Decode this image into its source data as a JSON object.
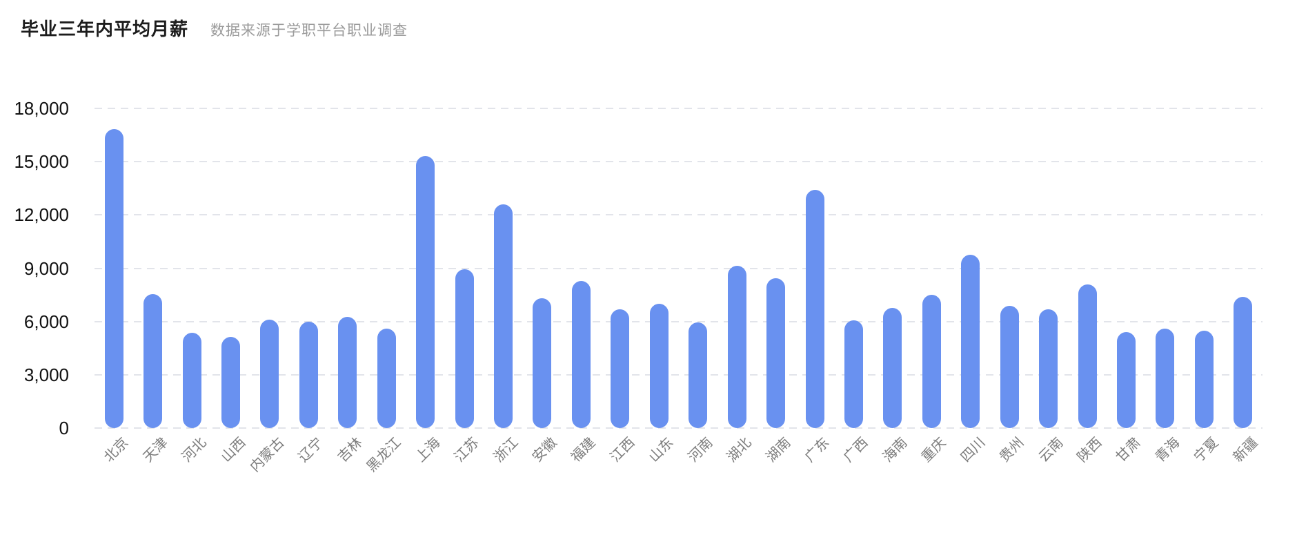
{
  "header": {
    "title": "毕业三年内平均月薪",
    "subtitle": "数据来源于学职平台职业调查"
  },
  "chart_data": {
    "type": "bar",
    "title": "毕业三年内平均月薪",
    "subtitle": "数据来源于学职平台职业调查",
    "categories": [
      "北京",
      "天津",
      "河北",
      "山西",
      "内蒙古",
      "辽宁",
      "吉林",
      "黑龙江",
      "上海",
      "江苏",
      "浙江",
      "安徽",
      "福建",
      "江西",
      "山东",
      "河南",
      "湖北",
      "湖南",
      "广东",
      "广西",
      "海南",
      "重庆",
      "四川",
      "贵州",
      "云南",
      "陕西",
      "甘肃",
      "青海",
      "宁夏",
      "新疆"
    ],
    "values": [
      16850,
      7550,
      5350,
      5150,
      6100,
      6000,
      6250,
      5600,
      15300,
      8950,
      12600,
      7300,
      8300,
      6700,
      7000,
      5950,
      9150,
      8450,
      13400,
      6050,
      6750,
      7500,
      9750,
      6900,
      6700,
      8100,
      5400,
      5600,
      5500,
      7400
    ],
    "xlabel": "",
    "ylabel": "",
    "ylim": [
      0,
      18000
    ],
    "yticks": [
      0,
      3000,
      6000,
      9000,
      12000,
      15000,
      18000
    ],
    "ytick_labels": [
      "0",
      "3,000",
      "6,000",
      "9,000",
      "12,000",
      "15,000",
      "18,000"
    ],
    "grid": "horizontal-dashed",
    "legend_position": "none",
    "colors": {
      "bar": "#6991F0",
      "gridline": "#e2e4ea",
      "y_tick_text": "#111111",
      "x_tick_text": "#7d7d7d",
      "title_text": "#1c1c1c",
      "subtitle_text": "#9b9b9b",
      "background": "#ffffff"
    }
  }
}
